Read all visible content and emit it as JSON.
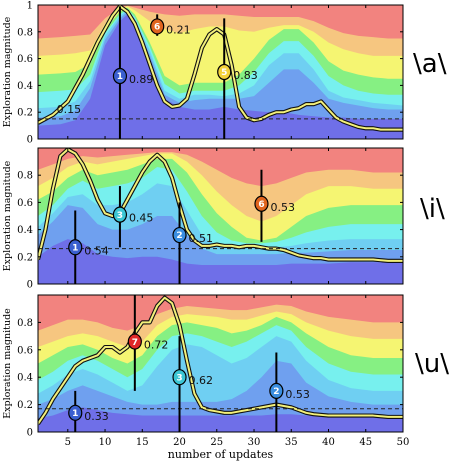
{
  "chart_data": [
    {
      "type": "area",
      "vowel_label": "\\a\\",
      "ylabel": "Exploration magnitude",
      "xlim": [
        1,
        50
      ],
      "ylim": [
        0,
        1
      ],
      "yticks": [
        "0",
        "0.2",
        "0.4",
        "0.6",
        "0.8",
        "1"
      ],
      "band_colors": [
        "#6f6fe8",
        "#6fa0ef",
        "#6fcff2",
        "#77f0ee",
        "#86f083",
        "#f5f572",
        "#f6c680",
        "#f2837f"
      ],
      "bands": {
        "x": [
          1,
          4,
          6,
          8,
          10,
          12,
          13,
          14,
          16,
          18,
          20,
          22,
          24,
          26,
          28,
          30,
          32,
          34,
          36,
          38,
          40,
          42,
          44,
          46,
          48,
          50
        ],
        "tops": [
          [
            0.1,
            0.11,
            0.14,
            0.3,
            0.7,
            0.88,
            0.93,
            0.85,
            0.58,
            0.3,
            0.24,
            0.22,
            0.22,
            0.24,
            0.22,
            0.21,
            0.2,
            0.2,
            0.18,
            0.17,
            0.16,
            0.16,
            0.15,
            0.15,
            0.15,
            0.15
          ],
          [
            0.16,
            0.17,
            0.21,
            0.38,
            0.74,
            0.9,
            0.95,
            0.88,
            0.63,
            0.33,
            0.27,
            0.29,
            0.3,
            0.3,
            0.3,
            0.32,
            0.42,
            0.52,
            0.52,
            0.42,
            0.3,
            0.27,
            0.25,
            0.23,
            0.22,
            0.22
          ],
          [
            0.23,
            0.24,
            0.28,
            0.43,
            0.77,
            0.92,
            0.96,
            0.9,
            0.66,
            0.36,
            0.3,
            0.33,
            0.33,
            0.32,
            0.34,
            0.4,
            0.55,
            0.64,
            0.64,
            0.52,
            0.36,
            0.31,
            0.29,
            0.27,
            0.26,
            0.25
          ],
          [
            0.35,
            0.36,
            0.37,
            0.48,
            0.79,
            0.93,
            0.97,
            0.91,
            0.69,
            0.41,
            0.34,
            0.36,
            0.36,
            0.36,
            0.4,
            0.5,
            0.64,
            0.73,
            0.73,
            0.62,
            0.47,
            0.4,
            0.36,
            0.34,
            0.33,
            0.33
          ],
          [
            0.48,
            0.49,
            0.5,
            0.56,
            0.82,
            0.95,
            0.98,
            0.93,
            0.72,
            0.47,
            0.4,
            0.42,
            0.42,
            0.42,
            0.48,
            0.6,
            0.74,
            0.82,
            0.82,
            0.72,
            0.58,
            0.51,
            0.48,
            0.46,
            0.45,
            0.45
          ],
          [
            0.62,
            0.63,
            0.64,
            0.66,
            0.86,
            0.97,
            0.99,
            0.96,
            0.88,
            0.82,
            0.79,
            0.82,
            0.84,
            0.84,
            0.81,
            0.8,
            0.83,
            0.85,
            0.85,
            0.8,
            0.72,
            0.67,
            0.64,
            0.62,
            0.62,
            0.62
          ],
          [
            0.75,
            0.76,
            0.77,
            0.78,
            0.9,
            0.98,
            0.995,
            0.98,
            0.95,
            0.93,
            0.92,
            0.93,
            0.93,
            0.93,
            0.92,
            0.91,
            0.91,
            0.91,
            0.91,
            0.88,
            0.83,
            0.79,
            0.77,
            0.76,
            0.75,
            0.75
          ]
        ]
      },
      "series": [
        {
          "x": [
            1,
            3,
            5,
            7,
            9,
            11,
            12,
            13,
            14,
            15,
            16,
            17,
            18,
            19,
            20,
            21,
            22,
            23,
            24,
            25,
            26,
            27,
            28,
            29,
            30,
            31,
            32,
            33,
            34,
            35,
            36,
            37,
            38,
            39,
            40,
            41,
            42,
            43,
            44,
            45,
            46,
            47,
            48,
            49,
            50
          ],
          "values": [
            0.12,
            0.18,
            0.28,
            0.48,
            0.72,
            0.92,
            0.99,
            0.95,
            0.86,
            0.72,
            0.56,
            0.4,
            0.28,
            0.24,
            0.25,
            0.3,
            0.48,
            0.68,
            0.78,
            0.82,
            0.78,
            0.55,
            0.24,
            0.16,
            0.14,
            0.15,
            0.18,
            0.2,
            0.2,
            0.22,
            0.23,
            0.26,
            0.26,
            0.28,
            0.22,
            0.16,
            0.13,
            0.11,
            0.09,
            0.08,
            0.08,
            0.07,
            0.07,
            0.07,
            0.07
          ]
        }
      ],
      "threshold": 0.15,
      "threshold_label": "0.15",
      "markers": [
        {
          "id": "1",
          "x": 12,
          "y_low": 0.0,
          "y_high": 0.99,
          "badge_y": 0.47,
          "label": "0.89",
          "color": "#3a5fd0"
        },
        {
          "id": "6",
          "x": 17,
          "y_low": 0.77,
          "y_high": 0.93,
          "badge_y": 0.84,
          "label": "0.21",
          "color": "#e0641e"
        },
        {
          "id": "5",
          "x": 26,
          "y_low": 0.0,
          "y_high": 0.9,
          "badge_y": 0.5,
          "label": "0.83",
          "color": "#f4d23a"
        }
      ]
    },
    {
      "type": "area",
      "vowel_label": "\\i\\",
      "ylabel": "Exploration magnitude",
      "xlim": [
        1,
        50
      ],
      "ylim": [
        0,
        1
      ],
      "yticks": [
        "0",
        "0.2",
        "0.4",
        "0.6",
        "0.8"
      ],
      "band_colors": [
        "#6f6fe8",
        "#6fa0ef",
        "#6fcff2",
        "#77f0ee",
        "#86f083",
        "#f5f572",
        "#f6c680",
        "#f2837f"
      ],
      "bands": {
        "x": [
          1,
          3,
          5,
          7,
          9,
          11,
          13,
          15,
          17,
          19,
          21,
          23,
          25,
          27,
          29,
          31,
          33,
          35,
          37,
          40,
          43,
          46,
          50
        ],
        "tops": [
          [
            0.2,
            0.28,
            0.33,
            0.3,
            0.22,
            0.2,
            0.19,
            0.2,
            0.2,
            0.18,
            0.15,
            0.14,
            0.14,
            0.14,
            0.14,
            0.14,
            0.14,
            0.15,
            0.15,
            0.15,
            0.16,
            0.16,
            0.16
          ],
          [
            0.36,
            0.46,
            0.58,
            0.56,
            0.44,
            0.4,
            0.4,
            0.44,
            0.5,
            0.5,
            0.36,
            0.26,
            0.22,
            0.22,
            0.22,
            0.22,
            0.22,
            0.23,
            0.23,
            0.24,
            0.25,
            0.25,
            0.25
          ],
          [
            0.42,
            0.52,
            0.64,
            0.66,
            0.58,
            0.58,
            0.6,
            0.66,
            0.74,
            0.72,
            0.54,
            0.36,
            0.28,
            0.27,
            0.27,
            0.27,
            0.27,
            0.28,
            0.3,
            0.32,
            0.33,
            0.33,
            0.33
          ],
          [
            0.5,
            0.58,
            0.7,
            0.76,
            0.7,
            0.72,
            0.74,
            0.78,
            0.86,
            0.84,
            0.68,
            0.5,
            0.38,
            0.32,
            0.3,
            0.3,
            0.31,
            0.34,
            0.38,
            0.42,
            0.44,
            0.44,
            0.44
          ],
          [
            0.62,
            0.68,
            0.78,
            0.84,
            0.8,
            0.82,
            0.84,
            0.88,
            0.92,
            0.92,
            0.82,
            0.66,
            0.52,
            0.42,
            0.34,
            0.32,
            0.34,
            0.42,
            0.5,
            0.56,
            0.58,
            0.58,
            0.58
          ],
          [
            0.72,
            0.78,
            0.86,
            0.9,
            0.88,
            0.9,
            0.92,
            0.94,
            0.96,
            0.96,
            0.9,
            0.8,
            0.68,
            0.58,
            0.5,
            0.46,
            0.5,
            0.58,
            0.66,
            0.72,
            0.72,
            0.7,
            0.7
          ],
          [
            0.84,
            0.88,
            0.92,
            0.94,
            0.93,
            0.94,
            0.95,
            0.96,
            0.97,
            0.97,
            0.95,
            0.9,
            0.84,
            0.78,
            0.74,
            0.72,
            0.74,
            0.78,
            0.82,
            0.84,
            0.84,
            0.82,
            0.82
          ]
        ]
      },
      "series": [
        {
          "x": [
            1,
            2,
            3,
            4,
            5,
            6,
            7,
            8,
            9,
            10,
            11,
            12,
            13,
            14,
            15,
            16,
            17,
            18,
            19,
            20,
            21,
            22,
            23,
            24,
            25,
            26,
            27,
            28,
            29,
            30,
            31,
            32,
            33,
            34,
            35,
            36,
            37,
            38,
            39,
            40,
            42,
            44,
            46,
            48,
            50
          ],
          "values": [
            0.18,
            0.4,
            0.7,
            0.94,
            0.99,
            0.96,
            0.88,
            0.76,
            0.62,
            0.52,
            0.5,
            0.52,
            0.62,
            0.72,
            0.82,
            0.9,
            0.95,
            0.9,
            0.78,
            0.58,
            0.4,
            0.32,
            0.28,
            0.28,
            0.29,
            0.28,
            0.28,
            0.27,
            0.28,
            0.28,
            0.27,
            0.26,
            0.26,
            0.25,
            0.23,
            0.21,
            0.2,
            0.19,
            0.19,
            0.18,
            0.18,
            0.18,
            0.18,
            0.17,
            0.17
          ]
        }
      ],
      "threshold": 0.26,
      "threshold_label": "",
      "markers": [
        {
          "id": "1",
          "x": 6,
          "y_low": 0.0,
          "y_high": 0.54,
          "badge_y": 0.27,
          "label": "0.54",
          "color": "#3a5fd0"
        },
        {
          "id": "3",
          "x": 12,
          "y_low": 0.27,
          "y_high": 0.72,
          "badge_y": 0.51,
          "label": "0.45",
          "color": "#3cc6d4"
        },
        {
          "id": "2",
          "x": 20,
          "y_low": 0.0,
          "y_high": 0.6,
          "badge_y": 0.36,
          "label": "0.51",
          "color": "#3a8ee0"
        },
        {
          "id": "6",
          "x": 31,
          "y_low": 0.31,
          "y_high": 0.84,
          "badge_y": 0.59,
          "label": "0.53",
          "color": "#e0641e"
        }
      ]
    },
    {
      "type": "area",
      "vowel_label": "\\u\\",
      "ylabel": "Exploration magnitude",
      "xlim": [
        1,
        50
      ],
      "ylim": [
        0,
        1
      ],
      "xticks": [
        5,
        10,
        15,
        20,
        25,
        30,
        35,
        40,
        45,
        50
      ],
      "xlabel": "number of updates",
      "yticks": [
        "0",
        "0.2",
        "0.4",
        "0.6",
        "0.8"
      ],
      "band_colors": [
        "#6f6fe8",
        "#6fa0ef",
        "#6fcff2",
        "#77f0ee",
        "#86f083",
        "#f5f572",
        "#f6c680",
        "#f2837f"
      ],
      "bands": {
        "x": [
          1,
          3,
          5,
          7,
          9,
          11,
          13,
          15,
          17,
          19,
          21,
          23,
          25,
          27,
          29,
          31,
          33,
          35,
          37,
          40,
          43,
          46,
          50
        ],
        "tops": [
          [
            0.1,
            0.12,
            0.16,
            0.18,
            0.16,
            0.14,
            0.13,
            0.12,
            0.12,
            0.12,
            0.12,
            0.12,
            0.12,
            0.12,
            0.12,
            0.12,
            0.13,
            0.13,
            0.12,
            0.12,
            0.12,
            0.12,
            0.12
          ],
          [
            0.2,
            0.24,
            0.3,
            0.34,
            0.3,
            0.26,
            0.22,
            0.2,
            0.2,
            0.22,
            0.22,
            0.22,
            0.22,
            0.24,
            0.3,
            0.4,
            0.52,
            0.5,
            0.36,
            0.26,
            0.22,
            0.2,
            0.2
          ],
          [
            0.28,
            0.34,
            0.42,
            0.46,
            0.42,
            0.36,
            0.3,
            0.34,
            0.48,
            0.6,
            0.64,
            0.62,
            0.56,
            0.5,
            0.54,
            0.62,
            0.7,
            0.66,
            0.52,
            0.38,
            0.32,
            0.3,
            0.3
          ],
          [
            0.38,
            0.44,
            0.52,
            0.56,
            0.52,
            0.46,
            0.4,
            0.46,
            0.6,
            0.7,
            0.72,
            0.7,
            0.66,
            0.62,
            0.66,
            0.72,
            0.78,
            0.74,
            0.62,
            0.5,
            0.44,
            0.42,
            0.42
          ],
          [
            0.5,
            0.56,
            0.62,
            0.64,
            0.6,
            0.54,
            0.5,
            0.56,
            0.7,
            0.78,
            0.8,
            0.78,
            0.76,
            0.72,
            0.74,
            0.78,
            0.84,
            0.8,
            0.72,
            0.62,
            0.56,
            0.54,
            0.54
          ],
          [
            0.62,
            0.66,
            0.7,
            0.72,
            0.7,
            0.66,
            0.62,
            0.66,
            0.78,
            0.84,
            0.86,
            0.85,
            0.84,
            0.82,
            0.82,
            0.85,
            0.88,
            0.86,
            0.8,
            0.74,
            0.7,
            0.68,
            0.68
          ],
          [
            0.74,
            0.78,
            0.82,
            0.82,
            0.8,
            0.76,
            0.74,
            0.78,
            0.86,
            0.9,
            0.92,
            0.91,
            0.9,
            0.89,
            0.89,
            0.91,
            0.93,
            0.92,
            0.88,
            0.84,
            0.82,
            0.8,
            0.8
          ]
        ]
      },
      "series": [
        {
          "x": [
            1,
            2,
            3,
            4,
            5,
            6,
            7,
            8,
            9,
            10,
            11,
            12,
            13,
            14,
            15,
            16,
            17,
            18,
            19,
            20,
            21,
            22,
            23,
            24,
            25,
            26,
            27,
            28,
            29,
            30,
            31,
            32,
            33,
            34,
            35,
            36,
            37,
            38,
            40,
            42,
            44,
            46,
            48,
            50
          ],
          "values": [
            0.06,
            0.14,
            0.24,
            0.32,
            0.4,
            0.48,
            0.52,
            0.54,
            0.56,
            0.62,
            0.62,
            0.58,
            0.62,
            0.72,
            0.8,
            0.8,
            0.92,
            0.98,
            0.94,
            0.78,
            0.52,
            0.28,
            0.18,
            0.16,
            0.15,
            0.14,
            0.14,
            0.15,
            0.16,
            0.17,
            0.18,
            0.19,
            0.2,
            0.19,
            0.18,
            0.16,
            0.14,
            0.13,
            0.12,
            0.12,
            0.12,
            0.12,
            0.11,
            0.11
          ]
        }
      ],
      "threshold": 0.17,
      "threshold_label": "",
      "markers": [
        {
          "id": "1",
          "x": 6,
          "y_low": 0.0,
          "y_high": 0.3,
          "badge_y": 0.14,
          "label": "0.33",
          "color": "#3a5fd0"
        },
        {
          "id": "7",
          "x": 14,
          "y_low": 0.3,
          "y_high": 1.0,
          "badge_y": 0.66,
          "label": "0.72",
          "color": "#e02828"
        },
        {
          "id": "3",
          "x": 20,
          "y_low": 0.0,
          "y_high": 0.7,
          "badge_y": 0.4,
          "label": "0.62",
          "color": "#3cc6d4"
        },
        {
          "id": "2",
          "x": 33,
          "y_low": 0.0,
          "y_high": 0.58,
          "badge_y": 0.3,
          "label": "0.53",
          "color": "#3a8ee0"
        }
      ]
    }
  ]
}
